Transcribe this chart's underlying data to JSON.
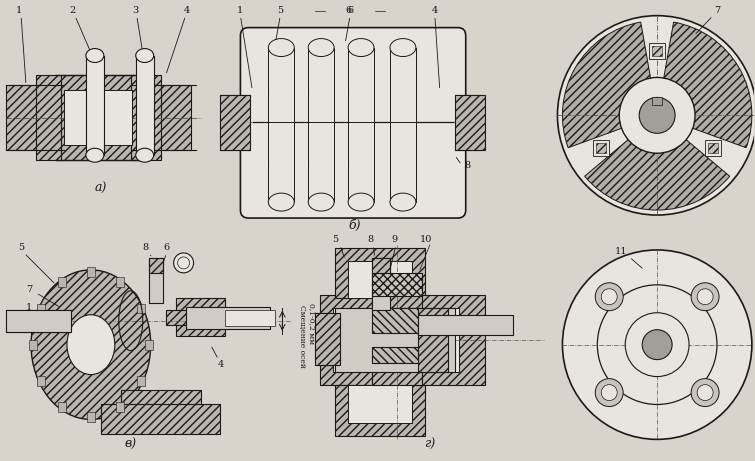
{
  "bg_color": "#d8d4cc",
  "line_color": "#1a1a1a",
  "figsize": [
    7.55,
    4.61
  ],
  "dpi": 100,
  "label_a": "а)",
  "label_b": "б)",
  "label_v": "в)",
  "label_g": "г)",
  "text_smeshenie": "Смещение осей",
  "text_mm": "0,1-0,2 мм",
  "fc_hatch": "#c8c4bc",
  "fc_white": "#e8e5de",
  "fc_dark": "#a0a098"
}
